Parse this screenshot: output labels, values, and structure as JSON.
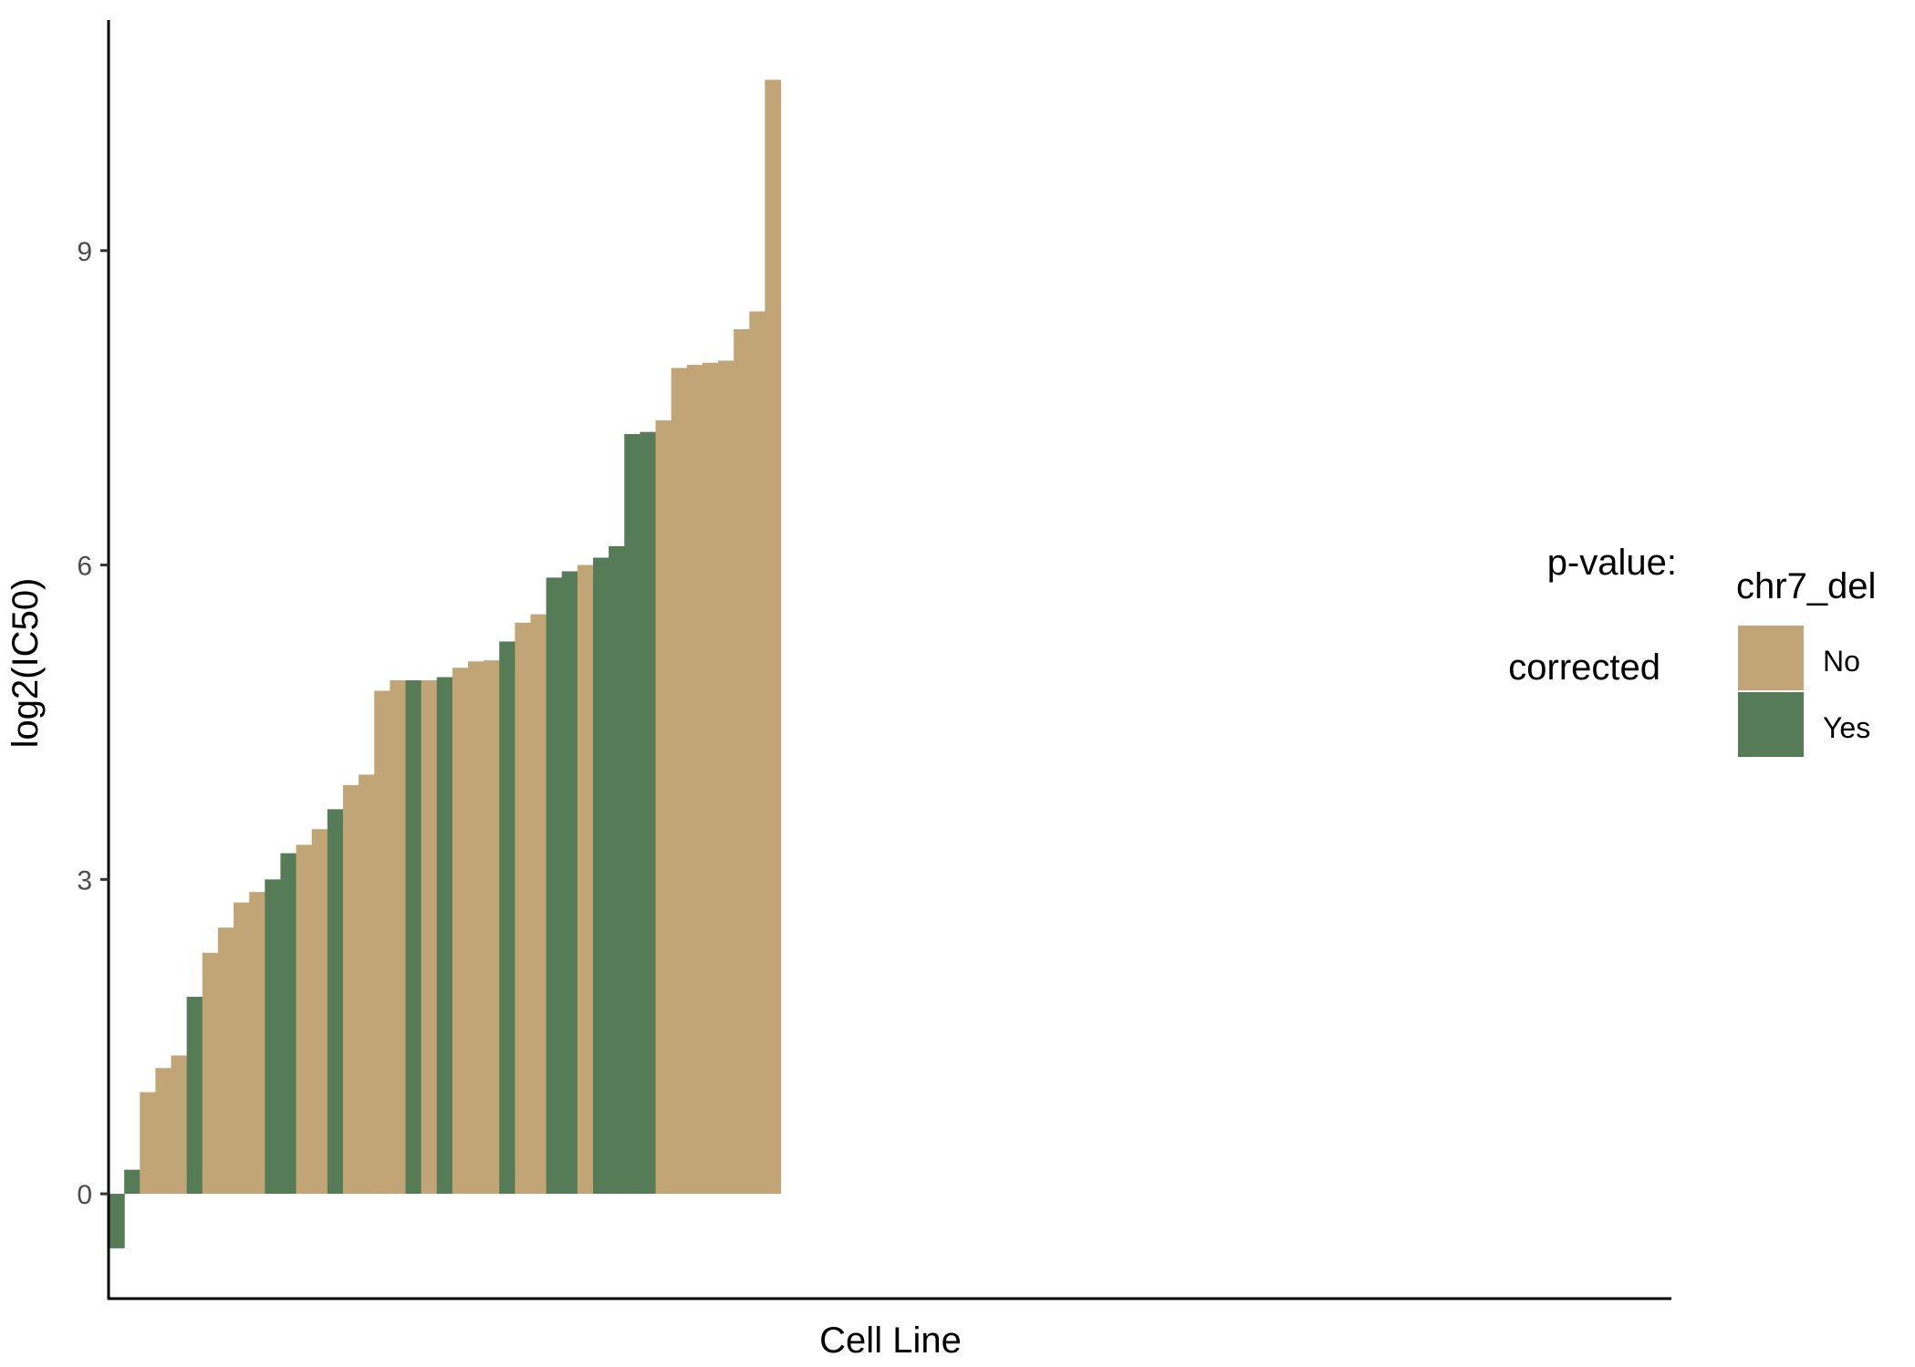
{
  "chart_data": {
    "type": "bar",
    "xlabel": "Cell Line",
    "ylabel": "log2(IC50)",
    "ylim": [
      -1.0,
      11.2
    ],
    "yticks": [
      0,
      3,
      6,
      9
    ],
    "ytick_labels": [
      "0",
      "3",
      "6",
      "9"
    ],
    "grid": false,
    "legend": {
      "title": "chr7_del",
      "placement": "right",
      "entries": [
        {
          "label": "No",
          "color": "#C2A577"
        },
        {
          "label": "Yes",
          "color": "#567C57"
        }
      ]
    },
    "annotations": [
      "p-value:",
      "corrected"
    ],
    "colors": {
      "No": "#C2A577",
      "Yes": "#567C57"
    },
    "values": [
      -0.52,
      0.23,
      0.97,
      1.2,
      1.32,
      1.88,
      2.3,
      2.54,
      2.78,
      2.88,
      3.0,
      3.25,
      3.33,
      3.48,
      3.67,
      3.9,
      4.0,
      4.8,
      4.9,
      4.9,
      4.9,
      4.93,
      5.02,
      5.08,
      5.09,
      5.27,
      5.45,
      5.53,
      5.88,
      5.94,
      6.0,
      6.07,
      6.18,
      7.25,
      7.27,
      7.38,
      7.88,
      7.91,
      7.93,
      7.95,
      8.25,
      8.42,
      10.63
    ],
    "groups": [
      "Yes",
      "Yes",
      "No",
      "No",
      "No",
      "Yes",
      "No",
      "No",
      "No",
      "No",
      "Yes",
      "Yes",
      "No",
      "No",
      "Yes",
      "No",
      "No",
      "No",
      "No",
      "Yes",
      "No",
      "Yes",
      "No",
      "No",
      "No",
      "Yes",
      "No",
      "No",
      "Yes",
      "Yes",
      "No",
      "Yes",
      "Yes",
      "Yes",
      "Yes",
      "No",
      "No",
      "No",
      "No",
      "No",
      "No",
      "No",
      "No"
    ],
    "total_slots": 100
  }
}
